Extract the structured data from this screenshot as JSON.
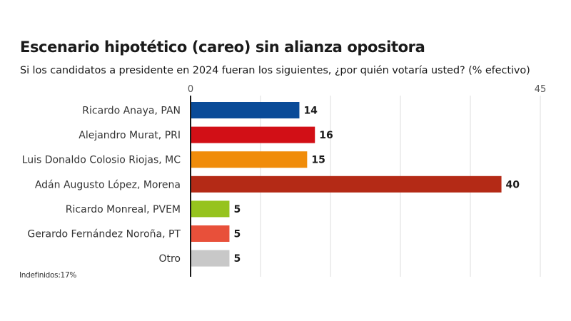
{
  "chart_data": {
    "type": "bar",
    "orientation": "horizontal",
    "title": "Escenario hipotético (careo) sin alianza opositora",
    "subtitle": "Si los candidatos a presidente en 2024 fueran los siguientes, ¿por quién votaría usted?  (% efectivo)",
    "xlabel": "",
    "ylabel": "",
    "xlim": [
      0,
      45
    ],
    "x_tick_labels": [
      "0",
      "45"
    ],
    "gridlines": [
      0,
      9,
      18,
      27,
      36,
      45
    ],
    "grid": true,
    "categories": [
      "Ricardo Anaya, PAN",
      "Alejandro Murat, PRI",
      "Luis Donaldo Colosio Riojas, MC",
      "Adán Augusto López, Morena",
      "Ricardo Monreal, PVEM",
      "Gerardo Fernández Noroña, PT",
      "Otro"
    ],
    "values": [
      14,
      16,
      15,
      40,
      5,
      5,
      5
    ],
    "value_labels": [
      "14",
      "16",
      "15",
      "40",
      "5",
      "5",
      "5"
    ],
    "colors": [
      "#0a4b98",
      "#d20f16",
      "#f08c0a",
      "#b42a16",
      "#96c31e",
      "#e8503a",
      "#c8c8c8"
    ],
    "footnote": "Indefinidos:17%"
  }
}
